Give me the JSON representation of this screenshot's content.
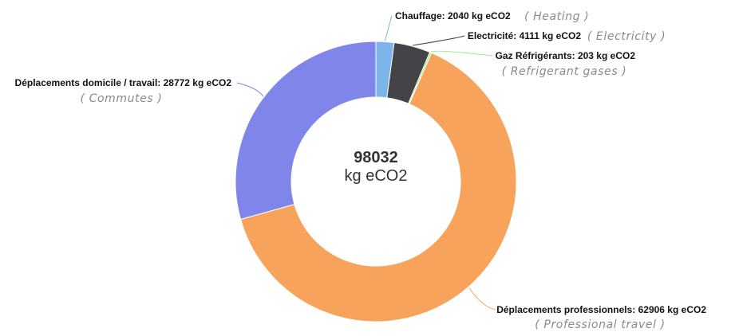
{
  "chart_data": {
    "type": "pie",
    "variant": "donut",
    "center": {
      "total": "98032",
      "unit": "kg eCO2"
    },
    "slices": [
      {
        "label": "Chauffage: 2040 kg eCO2",
        "translation": "( Heating )",
        "value": 2040,
        "color": "#7cb5ec"
      },
      {
        "label": "Electricité: 4111 kg eCO2",
        "translation": "( Electricity )",
        "value": 4111,
        "color": "#434348"
      },
      {
        "label": "Gaz Réfrigérants: 203 kg eCO2",
        "translation": "( Refrigerant gases )",
        "value": 203,
        "color": "#90ed7d"
      },
      {
        "label": "Déplacements professionnels: 62906 kg eCO2",
        "translation": "( Professional travel )",
        "value": 62906,
        "color": "#f7a35c"
      },
      {
        "label": "Déplacements domicile / travail: 28772 kg eCO2",
        "translation": "( Commutes )",
        "value": 28772,
        "color": "#8085e9"
      }
    ]
  }
}
